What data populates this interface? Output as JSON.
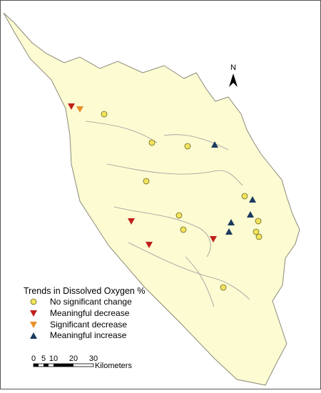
{
  "north_arrow": {
    "label": "N"
  },
  "legend": {
    "title": "Trends in Dissolved Oxygen %",
    "items": [
      "No significant change",
      "Meaningful decrease",
      "Significant decrease",
      "Meaningful increase"
    ]
  },
  "scale_bar": {
    "ticks": [
      "0",
      "5",
      "10",
      "20",
      "30"
    ],
    "unit": "Kilometers"
  }
}
